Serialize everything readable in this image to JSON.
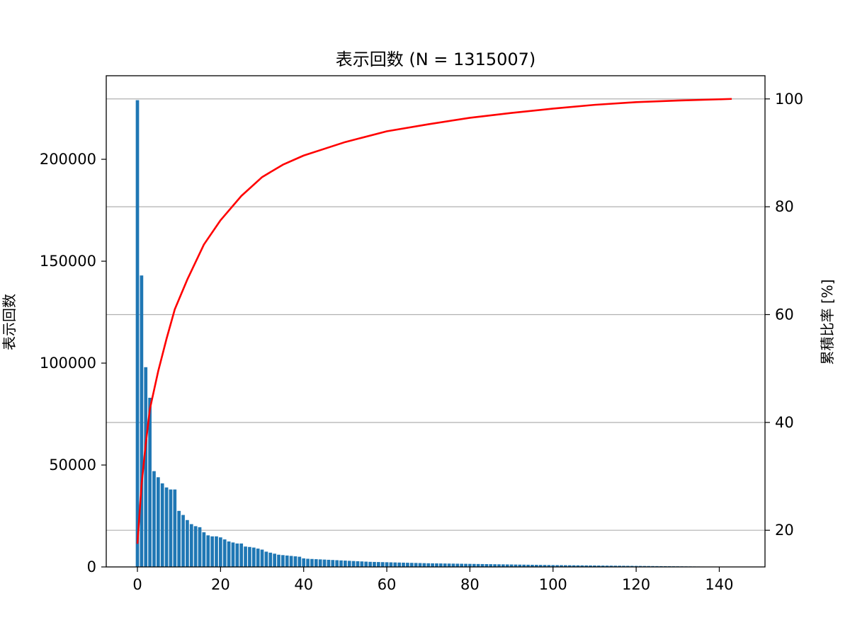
{
  "chart_data": {
    "type": "bar",
    "title": "表示回数 (N = 1315007)",
    "ylabel": "表示回数",
    "y2label": "累積比率 [%]",
    "xlabel": "",
    "grid": "horizontal, right axis",
    "xlim": [
      -7.5,
      151
    ],
    "ylim": [
      0,
      241000
    ],
    "y2lim": [
      13.2,
      104.3
    ],
    "x_ticks": [
      0,
      20,
      40,
      60,
      80,
      100,
      120,
      140
    ],
    "y_ticks": [
      0,
      50000,
      100000,
      150000,
      200000
    ],
    "y2_ticks": [
      20,
      40,
      60,
      80,
      100
    ],
    "bar_color": "#1f77b4",
    "line_color": "#ff0000",
    "grid_color": "#b0b0b0",
    "series": [
      {
        "kind": "bar",
        "axis": "left",
        "x_start": 0,
        "values": [
          229000,
          143000,
          98000,
          83000,
          47000,
          44000,
          41000,
          39000,
          38000,
          38000,
          27500,
          25500,
          23000,
          21000,
          20000,
          19500,
          17000,
          15500,
          15000,
          15000,
          14500,
          13500,
          12500,
          12000,
          11500,
          11500,
          10000,
          9800,
          9500,
          9000,
          8500,
          7500,
          7000,
          6500,
          6000,
          5800,
          5600,
          5400,
          5200,
          5000,
          4200,
          4000,
          3900,
          3800,
          3700,
          3600,
          3500,
          3400,
          3300,
          3200,
          3100,
          3000,
          2900,
          2800,
          2700,
          2600,
          2500,
          2450,
          2400,
          2350,
          2300,
          2250,
          2200,
          2150,
          2100,
          2050,
          2000,
          1950,
          1900,
          1850,
          1800,
          1770,
          1740,
          1710,
          1680,
          1650,
          1620,
          1590,
          1560,
          1530,
          1500,
          1470,
          1440,
          1410,
          1380,
          1350,
          1320,
          1290,
          1260,
          1230,
          1200,
          1170,
          1140,
          1110,
          1080,
          1050,
          1020,
          990,
          960,
          930,
          900,
          880,
          860,
          840,
          820,
          800,
          780,
          760,
          740,
          720,
          700,
          680,
          660,
          640,
          620,
          600,
          580,
          560,
          540,
          520,
          500,
          480,
          460,
          440,
          420,
          400,
          380,
          360,
          340,
          320,
          300,
          280,
          260,
          240,
          220,
          200,
          180,
          160,
          140,
          120,
          100,
          80,
          60,
          40
        ]
      },
      {
        "kind": "line",
        "axis": "right",
        "x": [
          0,
          1,
          2,
          3,
          4,
          5,
          7,
          9,
          12,
          16,
          20,
          25,
          30,
          35,
          40,
          50,
          60,
          70,
          80,
          90,
          100,
          110,
          120,
          130,
          143
        ],
        "values": [
          17.5,
          28.5,
          36.0,
          42.5,
          46.0,
          49.5,
          55.5,
          61.0,
          66.5,
          73.0,
          77.5,
          82.0,
          85.5,
          87.8,
          89.5,
          92.0,
          94.0,
          95.3,
          96.5,
          97.4,
          98.2,
          98.9,
          99.4,
          99.7,
          100.0
        ]
      }
    ]
  }
}
